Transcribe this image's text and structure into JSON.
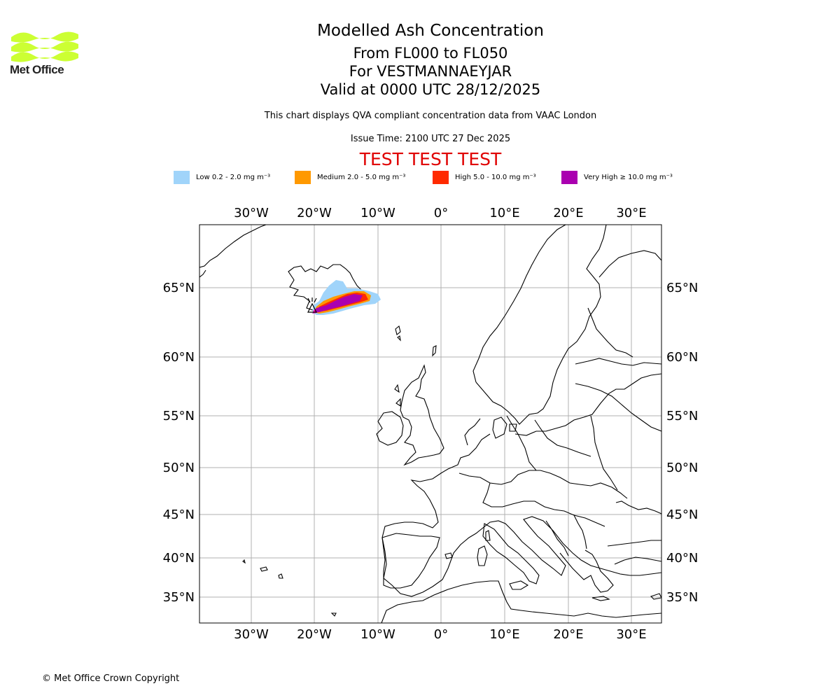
{
  "logo": {
    "text": "Met Office",
    "color": "#ccff33"
  },
  "header": {
    "title": "Modelled Ash Concentration",
    "levels": "From FL000 to FL050",
    "volcano": "For VESTMANNAEYJAR",
    "valid": "Valid at 0000 UTC 28/12/2025",
    "note": "This chart displays QVA compliant concentration data from VAAC London",
    "issue": "Issue Time: 2100 UTC 27 Dec 2025",
    "test_banner": "TEST TEST TEST"
  },
  "legend": [
    {
      "label": "Low 0.2 - 2.0 mg m⁻³",
      "color": "#a0d4fa"
    },
    {
      "label": "Medium 2.0 - 5.0 mg m⁻³",
      "color": "#ff9900"
    },
    {
      "label": "High 5.0 - 10.0 mg m⁻³",
      "color": "#ff2a00"
    },
    {
      "label": "Very High ≥ 10.0 mg m⁻³",
      "color": "#aa00b0"
    }
  ],
  "map": {
    "lon_labels": [
      "30°W",
      "20°W",
      "10°W",
      "0°",
      "10°E",
      "20°E",
      "30°E"
    ],
    "lat_labels": [
      "65°N",
      "60°N",
      "55°N",
      "50°N",
      "45°N",
      "40°N",
      "35°N"
    ]
  },
  "footer": {
    "copyright": "© Met Office Crown Copyright"
  }
}
